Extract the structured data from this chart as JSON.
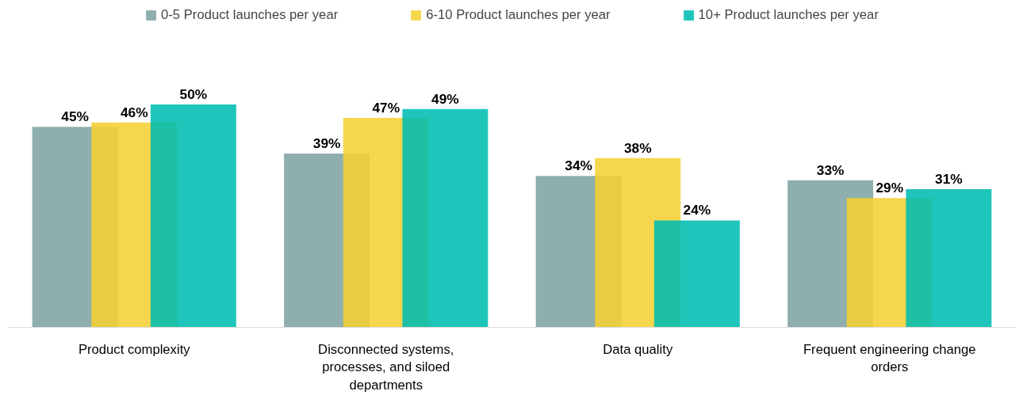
{
  "chart_data": {
    "type": "bar",
    "categories": [
      "Product complexity",
      "Disconnected systems, processes, and siloed departments",
      "Data quality",
      "Frequent engineering change orders"
    ],
    "series": [
      {
        "name": "0-5 Product launches per year",
        "color": "#7fa3a3",
        "values": [
          45,
          39,
          34,
          33
        ],
        "value_labels": [
          "45%",
          "39%",
          "34%",
          "33%"
        ]
      },
      {
        "name": "6-10 Product launches per year",
        "color": "#f5d033",
        "values": [
          46,
          47,
          38,
          29
        ],
        "value_labels": [
          "46%",
          "47%",
          "38%",
          "29%"
        ]
      },
      {
        "name": "10+ Product launches per year",
        "color": "#00bdb2",
        "values": [
          50,
          49,
          24,
          31
        ],
        "value_labels": [
          "50%",
          "49%",
          "24%",
          "31%"
        ]
      }
    ],
    "legend": "top"
  }
}
